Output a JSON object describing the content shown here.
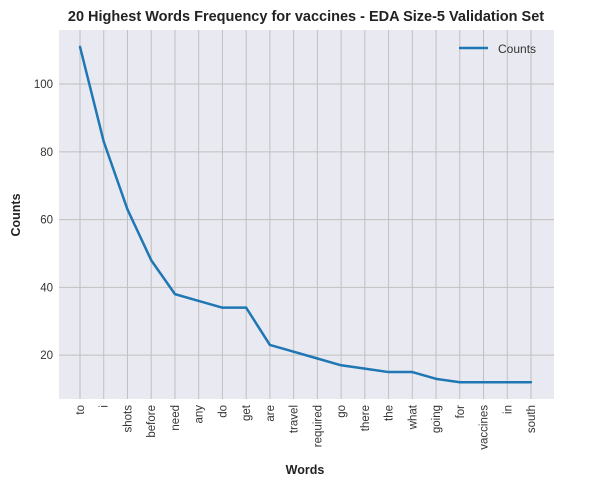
{
  "chart_data": {
    "type": "line",
    "title": "20 Highest Words Frequency for vaccines - EDA Size-5 Validation Set",
    "xlabel": "Words",
    "ylabel": "Counts",
    "categories": [
      "to",
      "i",
      "shots",
      "before",
      "need",
      "any",
      "do",
      "get",
      "are",
      "travel",
      "required",
      "go",
      "there",
      "the",
      "what",
      "going",
      "for",
      "vaccines",
      "in",
      "south"
    ],
    "series": [
      {
        "name": "Counts",
        "color": "#1f77b4",
        "values": [
          111,
          83,
          63,
          48,
          38,
          36,
          34,
          34,
          23,
          21,
          19,
          17,
          16,
          15,
          15,
          13,
          12,
          12,
          12,
          12
        ]
      }
    ],
    "ylim": [
      7.05,
      115.95
    ],
    "yticks": [
      20,
      40,
      60,
      80,
      100
    ],
    "grid": true,
    "legend_position": "top-right",
    "background_color": "#e9e9f1",
    "grid_color": "#c0c0c0"
  }
}
